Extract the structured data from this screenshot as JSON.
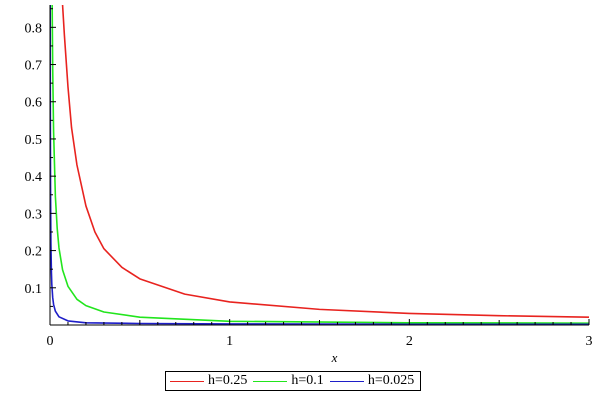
{
  "chart_data": {
    "type": "line",
    "title": "",
    "xlabel": "x",
    "ylabel": "",
    "xlim": [
      0,
      3
    ],
    "ylim": [
      0,
      0.86
    ],
    "x_ticks": [
      0,
      1,
      2,
      3
    ],
    "y_ticks": [
      0.1,
      0.2,
      0.3,
      0.4,
      0.5,
      0.6,
      0.7,
      0.8
    ],
    "grid": false,
    "legend_position": "bottom",
    "series": [
      {
        "name": "h=0.25",
        "color": "#e8231f",
        "x": [
          0.07,
          0.08,
          0.1,
          0.12,
          0.15,
          0.2,
          0.25,
          0.3,
          0.4,
          0.5,
          0.75,
          1.0,
          1.5,
          2.0,
          2.5,
          3.0
        ],
        "y": [
          0.86,
          0.78,
          0.64,
          0.53,
          0.43,
          0.32,
          0.25,
          0.205,
          0.155,
          0.124,
          0.083,
          0.062,
          0.042,
          0.031,
          0.025,
          0.021
        ]
      },
      {
        "name": "h=0.1",
        "color": "#22e51d",
        "x": [
          0.012,
          0.015,
          0.02,
          0.03,
          0.04,
          0.05,
          0.07,
          0.1,
          0.15,
          0.2,
          0.3,
          0.5,
          1.0,
          2.0,
          3.0
        ],
        "y": [
          0.86,
          0.69,
          0.52,
          0.345,
          0.26,
          0.207,
          0.148,
          0.104,
          0.069,
          0.052,
          0.035,
          0.021,
          0.01,
          0.006,
          0.005
        ]
      },
      {
        "name": "h=0.025",
        "color": "#1e1ec8",
        "x": [
          0.001,
          0.002,
          0.003,
          0.005,
          0.008,
          0.01,
          0.015,
          0.02,
          0.03,
          0.05,
          0.1,
          0.2,
          0.5,
          1.0,
          2.0,
          3.0
        ],
        "y": [
          0.86,
          0.55,
          0.37,
          0.22,
          0.14,
          0.11,
          0.074,
          0.055,
          0.037,
          0.022,
          0.011,
          0.006,
          0.004,
          0.003,
          0.002,
          0.002
        ]
      }
    ]
  }
}
